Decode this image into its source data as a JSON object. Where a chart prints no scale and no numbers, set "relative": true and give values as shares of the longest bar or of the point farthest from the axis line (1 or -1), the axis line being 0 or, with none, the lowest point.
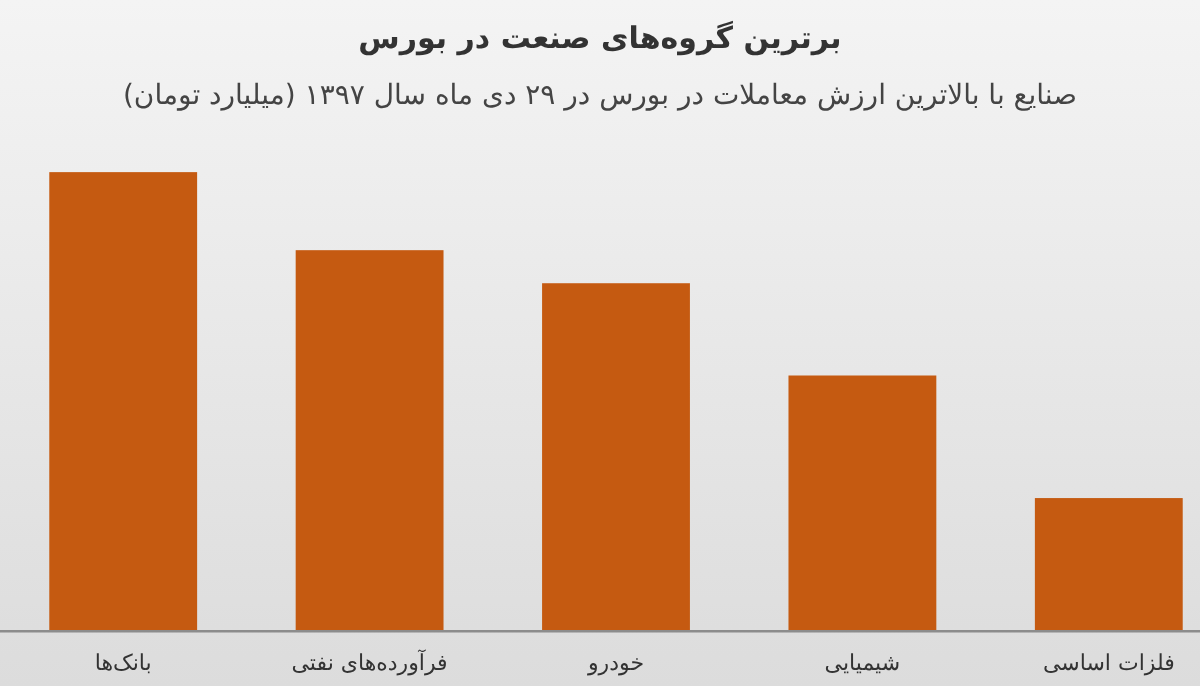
{
  "chart_data": {
    "type": "bar",
    "title": "برترین گروه‌های صنعت در بورس",
    "subtitle": "صنایع با بالاترین ارزش  معاملات در بورس در ۲۹ دی ماه سال ۱۳۹۷ (میلیارد تومان)",
    "categories": [
      "بانک‌ها",
      "فرآورده‌های نفتی",
      "خودرو",
      "شیمیایی",
      "فلزات اساسی"
    ],
    "values": [
      1,
      0.83,
      0.758,
      0.557,
      0.29
    ],
    "color": "#c55a11",
    "relative": true
  }
}
